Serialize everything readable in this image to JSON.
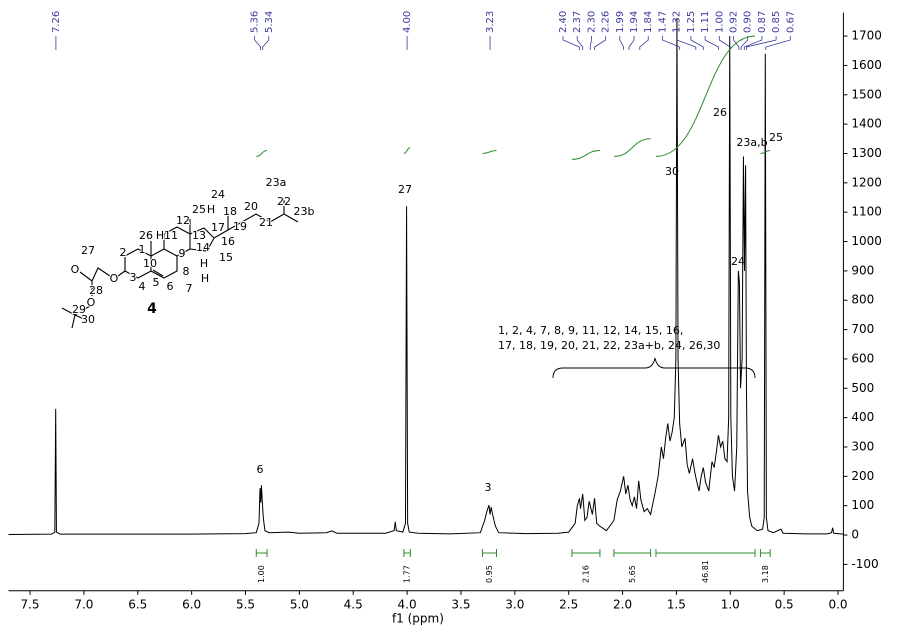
{
  "chart_data": {
    "type": "line",
    "x_label": "f1 (ppm)",
    "xlim": [
      7.7,
      -0.05
    ],
    "ylim": [
      -190,
      1780
    ],
    "xticks": [
      7.5,
      {
        "value": 7,
        "label": "7.0"
      },
      6.5,
      {
        "value": 6,
        "label": "6.0"
      },
      5.5,
      {
        "value": 5,
        "label": "5.0"
      },
      4.5,
      {
        "value": 4,
        "label": "4.0"
      },
      3.5,
      {
        "value": 3,
        "label": "3.0"
      },
      2.5,
      {
        "value": 2,
        "label": "2.0"
      },
      1.5,
      {
        "value": 1,
        "label": "1.0"
      },
      0.5,
      {
        "value": 0,
        "label": "0.0"
      }
    ],
    "yticks": [
      -100,
      0,
      100,
      200,
      300,
      400,
      500,
      600,
      700,
      800,
      900,
      1000,
      1100,
      1200,
      1300,
      1400,
      1500,
      1600,
      1700
    ],
    "series": [
      {
        "color": "#000000",
        "x": [
          7.7,
          7.3,
          7.27,
          7.262,
          7.255,
          7.22,
          6.0,
          5.8,
          5.5,
          5.4,
          5.375,
          5.365,
          5.358,
          5.352,
          5.345,
          5.335,
          5.32,
          5.28,
          5.1,
          5.0,
          4.75,
          4.7,
          4.65,
          4.2,
          4.12,
          4.11,
          4.1,
          4.04,
          4.015,
          4.005,
          3.995,
          3.98,
          3.9,
          3.6,
          3.32,
          3.28,
          3.26,
          3.24,
          3.23,
          3.22,
          3.2,
          3.18,
          3.15,
          2.9,
          2.6,
          2.5,
          2.44,
          2.42,
          2.4,
          2.39,
          2.37,
          2.35,
          2.33,
          2.31,
          2.3,
          2.28,
          2.26,
          2.24,
          2.21,
          2.15,
          2.08,
          2.05,
          2.02,
          1.99,
          1.97,
          1.95,
          1.93,
          1.91,
          1.89,
          1.87,
          1.85,
          1.83,
          1.8,
          1.77,
          1.74,
          1.7,
          1.67,
          1.64,
          1.62,
          1.6,
          1.58,
          1.56,
          1.54,
          1.52,
          1.505,
          1.495,
          1.485,
          1.47,
          1.45,
          1.42,
          1.4,
          1.38,
          1.35,
          1.33,
          1.31,
          1.29,
          1.27,
          1.25,
          1.23,
          1.2,
          1.17,
          1.15,
          1.13,
          1.11,
          1.09,
          1.07,
          1.05,
          1.03,
          1.015,
          1.005,
          0.995,
          0.98,
          0.96,
          0.94,
          0.925,
          0.915,
          0.905,
          0.89,
          0.878,
          0.868,
          0.858,
          0.85,
          0.84,
          0.82,
          0.8,
          0.75,
          0.7,
          0.685,
          0.675,
          0.665,
          0.65,
          0.6,
          0.53,
          0.51,
          0.3,
          0.1,
          0.06,
          0.05,
          0.04,
          -0.05
        ],
        "values": [
          2,
          3,
          10,
          430,
          10,
          3,
          3,
          4,
          5,
          8,
          40,
          160,
          110,
          170,
          120,
          60,
          15,
          8,
          10,
          6,
          8,
          14,
          6,
          6,
          15,
          45,
          15,
          10,
          40,
          1120,
          40,
          10,
          6,
          4,
          8,
          50,
          80,
          102,
          70,
          95,
          60,
          30,
          8,
          5,
          6,
          10,
          40,
          100,
          125,
          90,
          140,
          50,
          60,
          115,
          100,
          70,
          125,
          40,
          30,
          15,
          50,
          120,
          150,
          200,
          140,
          170,
          120,
          100,
          130,
          90,
          185,
          120,
          80,
          90,
          70,
          140,
          200,
          300,
          260,
          330,
          380,
          320,
          350,
          400,
          600,
          1760,
          600,
          380,
          300,
          330,
          240,
          210,
          260,
          215,
          180,
          150,
          200,
          230,
          180,
          150,
          250,
          230,
          280,
          340,
          300,
          320,
          260,
          250,
          400,
          1700,
          400,
          200,
          150,
          300,
          900,
          860,
          500,
          600,
          1290,
          900,
          1260,
          500,
          150,
          60,
          30,
          15,
          20,
          60,
          1640,
          60,
          15,
          8,
          20,
          6,
          4,
          4,
          8,
          25,
          6,
          3
        ]
      }
    ],
    "peak_labels": [
      7.26,
      5.36,
      5.34,
      {
        "value": 4,
        "label": "4.00"
      },
      3.23,
      {
        "value": 2.4,
        "label": "2.40"
      },
      2.37,
      {
        "value": 2.3,
        "label": "2.30"
      },
      2.26,
      1.99,
      1.94,
      1.84,
      1.47,
      1.32,
      1.25,
      1.11,
      {
        "value": 1,
        "label": "1.00"
      },
      0.92,
      {
        "value": 0.9,
        "label": "0.90"
      },
      0.87,
      0.85,
      0.67
    ],
    "integrals": [
      {
        "range": [
          5.4,
          5.3
        ],
        "label": "1.00",
        "curve": [
          1290,
          1310
        ]
      },
      {
        "range": [
          4.03,
          3.97
        ],
        "label": "1.77",
        "curve": [
          1300,
          1320
        ]
      },
      {
        "range": [
          3.3,
          3.17
        ],
        "label": "0.95",
        "curve": [
          1300,
          1310
        ]
      },
      {
        "range": [
          2.47,
          2.21
        ],
        "label": "2.16",
        "curve": [
          1280,
          1310
        ]
      },
      {
        "range": [
          2.08,
          1.74
        ],
        "label": "5.65",
        "curve": [
          1290,
          1350
        ]
      },
      {
        "range": [
          1.69,
          0.77
        ],
        "label": "46.81",
        "curve": [
          1290,
          1700
        ]
      },
      {
        "range": [
          0.72,
          0.63
        ],
        "label": "3.18",
        "curve": [
          1300,
          1310
        ]
      }
    ],
    "annotations": [
      "27",
      "6",
      "3",
      "30",
      "26",
      "23a,b",
      "24",
      "25",
      "1, 2, 4, 7, 8, 9, 11, 12, 14, 15, 16,",
      "17, 18, 19, 20, 21, 22, 23a+b, 24, 26,30"
    ],
    "structure": {
      "compound": "4",
      "atoms": [
        "23a",
        "22",
        "23b",
        "24",
        "20",
        "21",
        "19",
        "18",
        "25",
        "H",
        "12",
        "17",
        "11",
        "13",
        "26",
        "H",
        "1",
        "2",
        "9",
        "14",
        "16",
        "10",
        "8",
        "15",
        "H",
        "H",
        "3",
        "7",
        "5",
        "6",
        "4",
        "27",
        "O",
        "O",
        "28",
        "O",
        "29",
        "30"
      ]
    }
  }
}
